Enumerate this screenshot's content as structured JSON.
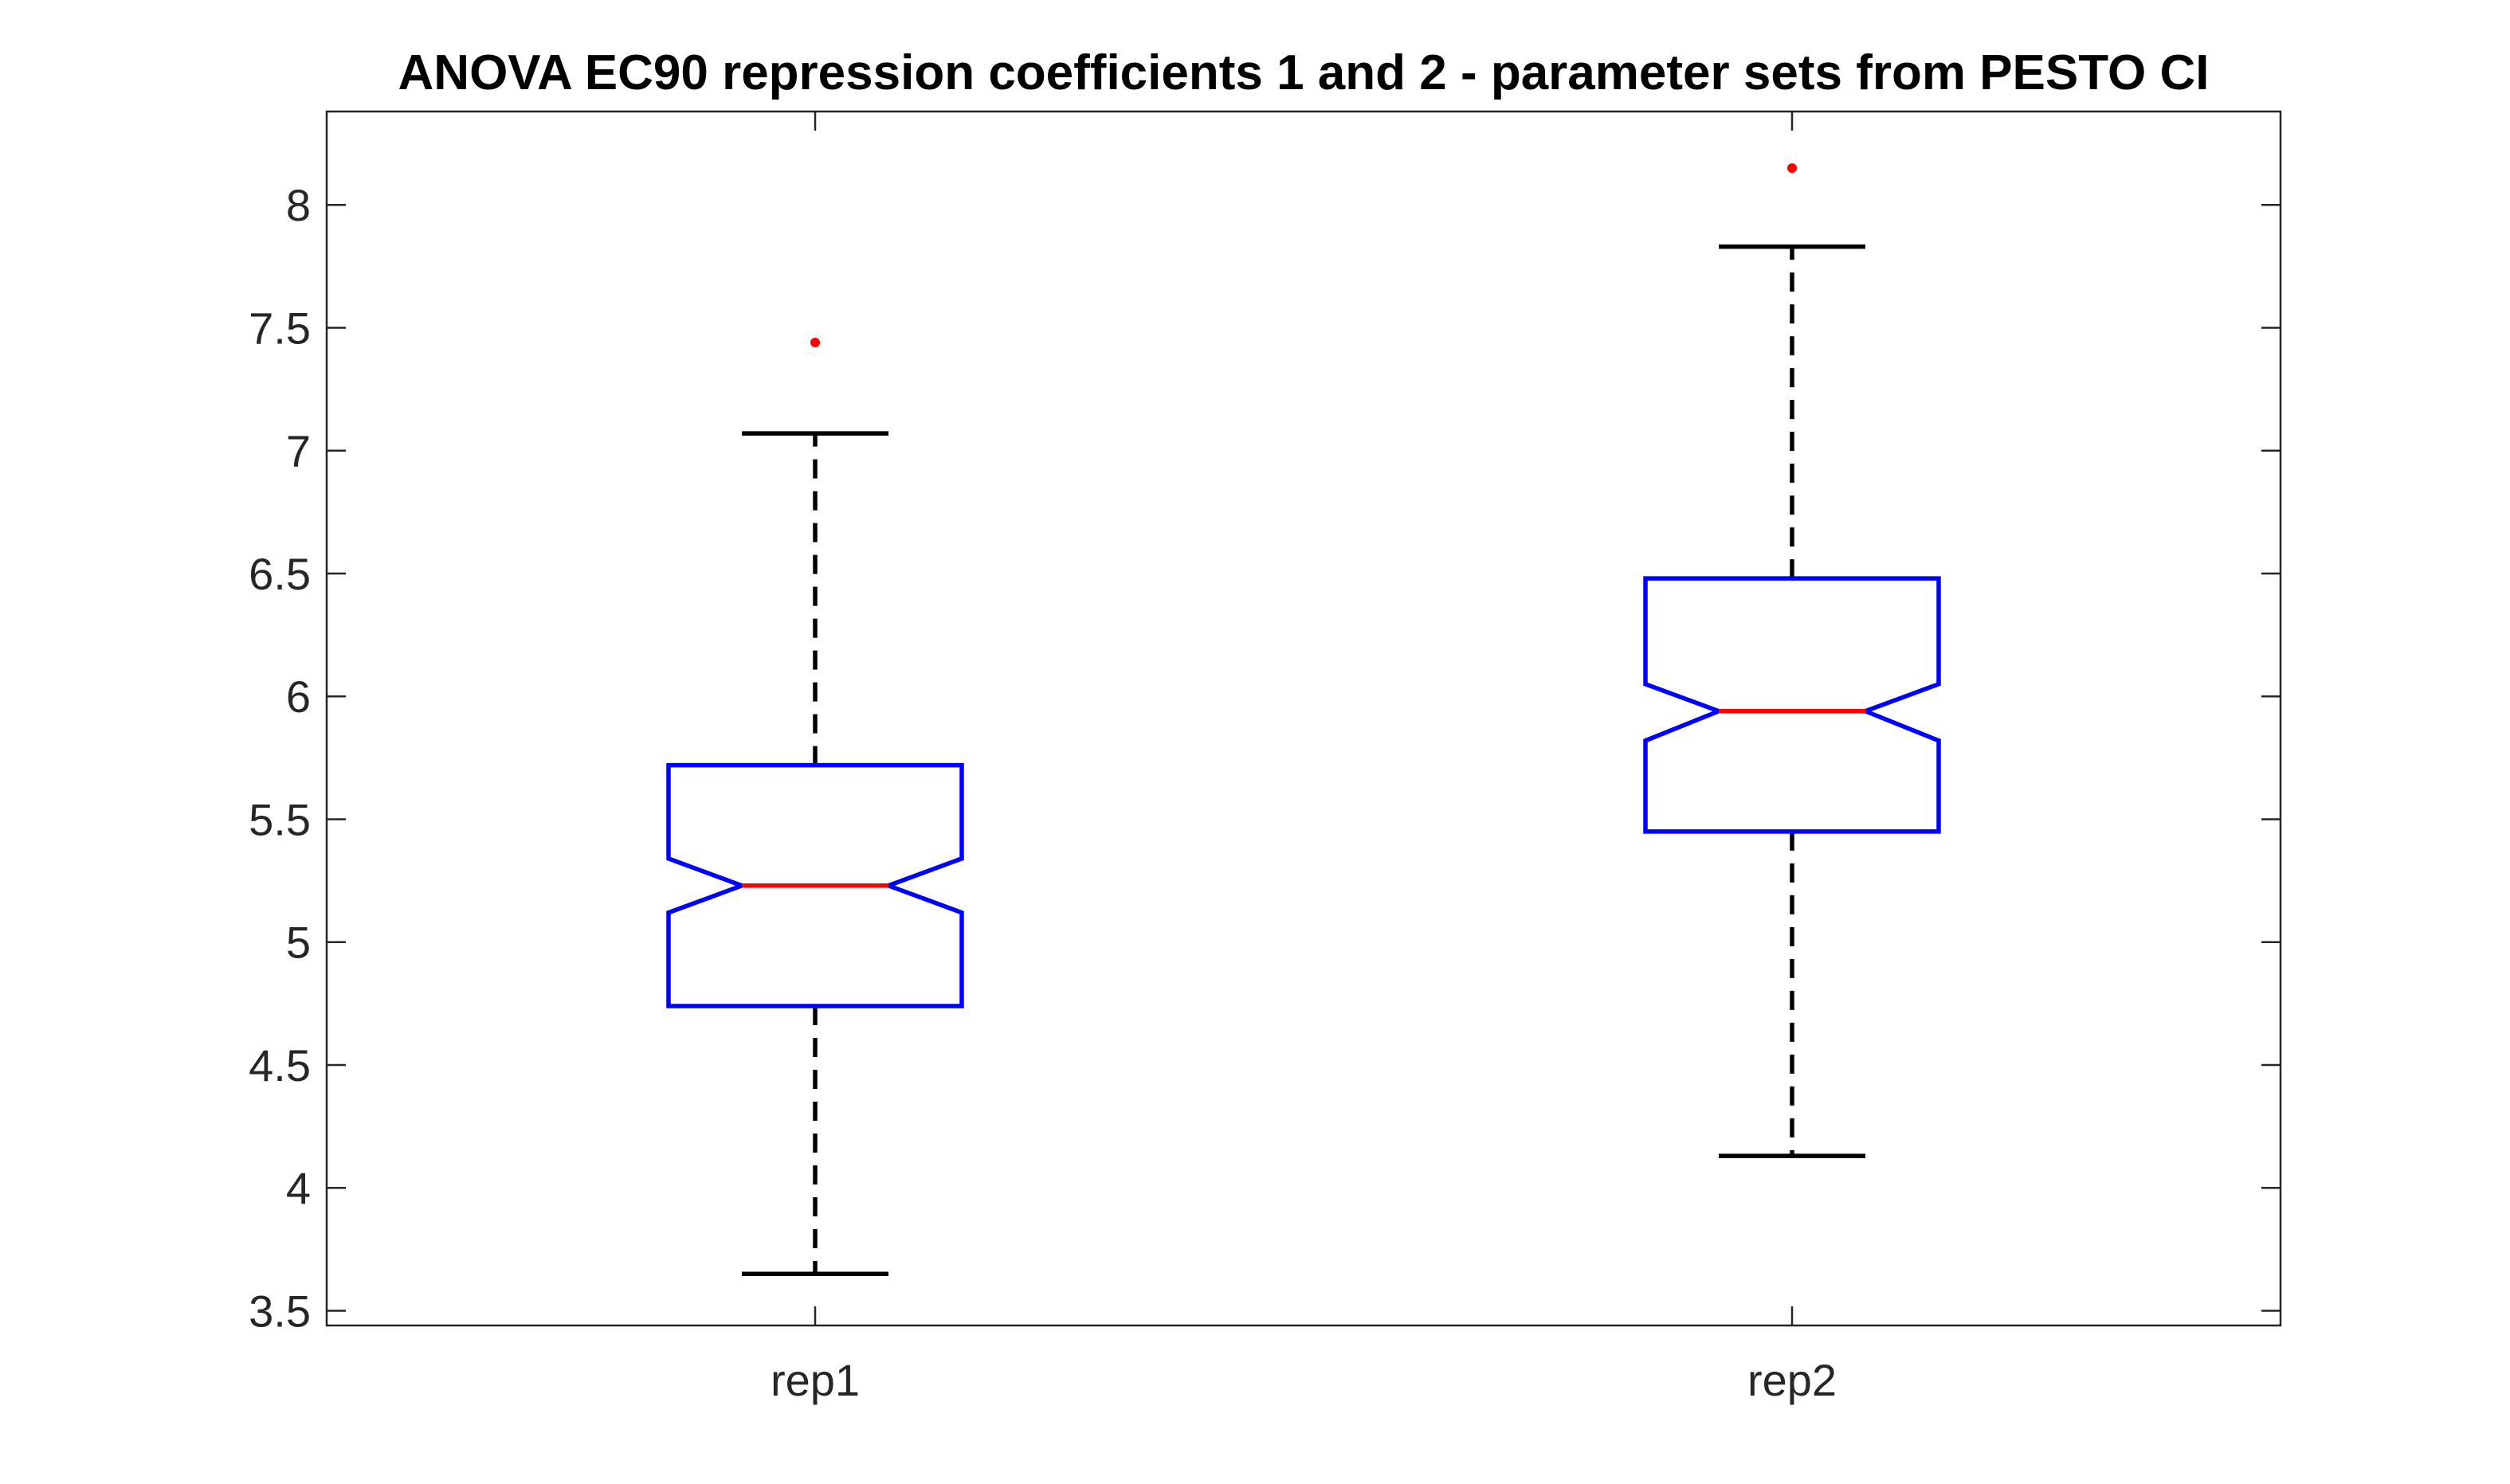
{
  "chart_data": {
    "type": "boxplot",
    "title": "ANOVA EC90 repression coefficients 1 and 2 - parameter sets from PESTO CI",
    "xlabel": "",
    "ylabel": "",
    "categories": [
      "rep1",
      "rep2"
    ],
    "ylim": [
      3.44,
      8.38
    ],
    "yticks": [
      "3.5",
      "4",
      "4.5",
      "5",
      "5.5",
      "6",
      "6.5",
      "7",
      "7.5",
      "8"
    ],
    "notched": true,
    "grid": false,
    "boxes": [
      {
        "category": "rep1",
        "whisker_low": 3.65,
        "q1": 4.74,
        "notch_low": 5.12,
        "median": 5.23,
        "notch_high": 5.34,
        "q3": 5.72,
        "whisker_high": 7.07,
        "outliers": [
          7.44
        ]
      },
      {
        "category": "rep2",
        "whisker_low": 4.13,
        "q1": 5.45,
        "notch_low": 5.82,
        "median": 5.94,
        "notch_high": 6.05,
        "q3": 6.48,
        "whisker_high": 7.83,
        "outliers": [
          8.15
        ]
      }
    ],
    "colors": {
      "box": "#0000ff",
      "median": "#ff0000",
      "whisker": "#000000",
      "outlier": "#ff0000",
      "axis": "#262626"
    }
  }
}
